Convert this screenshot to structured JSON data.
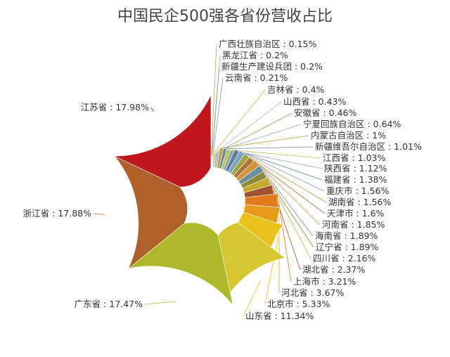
{
  "chart_data": {
    "type": "pie",
    "variant": "rose-donut",
    "title": "中国民企500强各省份营收占比",
    "label_separator": " : ",
    "slices": [
      {
        "label": "江苏省",
        "value": 17.98,
        "display": "17.98%",
        "color": "#c0171f"
      },
      {
        "label": "浙江省",
        "value": 17.88,
        "display": "17.88%",
        "color": "#b0612a"
      },
      {
        "label": "广东省",
        "value": 17.47,
        "display": "17.47%",
        "color": "#aeb82b"
      },
      {
        "label": "山东省",
        "value": 11.34,
        "display": "11.34%",
        "color": "#d6c62f"
      },
      {
        "label": "北京市",
        "value": 5.33,
        "display": "5.33%",
        "color": "#e8c21b"
      },
      {
        "label": "河北省",
        "value": 3.67,
        "display": "3.67%",
        "color": "#e59a1a"
      },
      {
        "label": "上海市",
        "value": 3.21,
        "display": "3.21%",
        "color": "#e07a1a"
      },
      {
        "label": "湖北省",
        "value": 2.37,
        "display": "2.37%",
        "color": "#a0522d"
      },
      {
        "label": "四川省",
        "value": 2.16,
        "display": "2.16%",
        "color": "#c8a82a"
      },
      {
        "label": "辽宁省",
        "value": 1.89,
        "display": "1.89%",
        "color": "#8b8b3a"
      },
      {
        "label": "海南省",
        "value": 1.89,
        "display": "1.89%",
        "color": "#6b8e9c"
      },
      {
        "label": "河南省",
        "value": 1.85,
        "display": "1.85%",
        "color": "#d0953a"
      },
      {
        "label": "天津市",
        "value": 1.6,
        "display": "1.6%",
        "color": "#b3703a"
      },
      {
        "label": "湖南省",
        "value": 1.56,
        "display": "1.56%",
        "color": "#9da63c"
      },
      {
        "label": "重庆市",
        "value": 1.56,
        "display": "1.56%",
        "color": "#7aa3c4"
      },
      {
        "label": "福建省",
        "value": 1.38,
        "display": "1.38%",
        "color": "#5f7f92"
      },
      {
        "label": "陕西省",
        "value": 1.12,
        "display": "1.12%",
        "color": "#8fa1b3"
      },
      {
        "label": "江西省",
        "value": 1.03,
        "display": "1.03%",
        "color": "#b8c44a"
      },
      {
        "label": "新疆维吾尔自治区",
        "value": 1.01,
        "display": "1.01%",
        "color": "#6a88a8"
      },
      {
        "label": "内蒙古自治区",
        "value": 1.0,
        "display": "1%",
        "color": "#c2a23c"
      },
      {
        "label": "宁夏回族自治区",
        "value": 0.64,
        "display": "0.64%",
        "color": "#9ab0c4"
      },
      {
        "label": "安徽省",
        "value": 0.46,
        "display": "0.46%",
        "color": "#8aa05a"
      },
      {
        "label": "山西省",
        "value": 0.43,
        "display": "0.43%",
        "color": "#a7b8c8"
      },
      {
        "label": "吉林省",
        "value": 0.4,
        "display": "0.4%",
        "color": "#c9b24a"
      },
      {
        "label": "云南省",
        "value": 0.21,
        "display": "0.21%",
        "color": "#7f9aad"
      },
      {
        "label": "新疆生产建设兵团",
        "value": 0.2,
        "display": "0.2%",
        "color": "#b4b86a"
      },
      {
        "label": "黑龙江省",
        "value": 0.2,
        "display": "0.2%",
        "color": "#9fa9b8"
      },
      {
        "label": "广西壮族自治区",
        "value": 0.15,
        "display": "0.15%",
        "color": "#c4a060"
      }
    ]
  }
}
